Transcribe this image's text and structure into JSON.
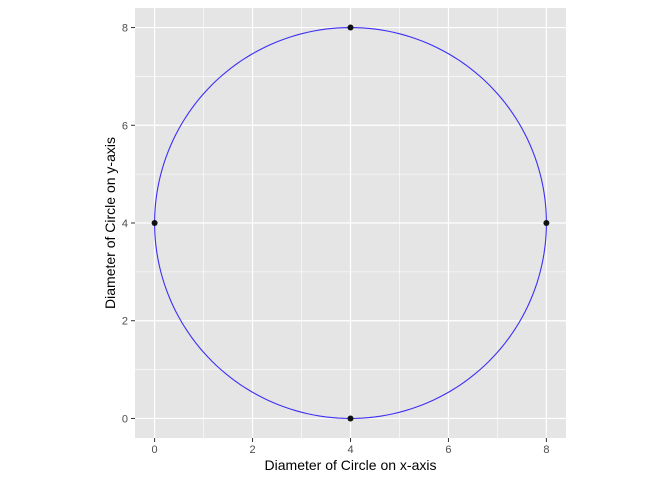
{
  "chart_data": {
    "type": "scatter",
    "title": "",
    "xlabel": "Diameter of Circle on x-axis",
    "ylabel": "Diameter of Circle on y-axis",
    "xlim": [
      -0.4,
      8.4
    ],
    "ylim": [
      -0.4,
      8.4
    ],
    "x_ticks": [
      0,
      2,
      4,
      6,
      8
    ],
    "y_ticks": [
      0,
      2,
      4,
      6,
      8
    ],
    "grid": true,
    "legend": "none",
    "points": [
      {
        "x": 4,
        "y": 8
      },
      {
        "x": 0,
        "y": 4
      },
      {
        "x": 8,
        "y": 4
      },
      {
        "x": 4,
        "y": 0
      }
    ],
    "circle": {
      "cx": 4,
      "cy": 4,
      "r": 4
    },
    "colors": {
      "panel": "#e5e5e5",
      "grid": "#ffffff",
      "circle": "#3d2ef5",
      "point": "#111111"
    }
  }
}
